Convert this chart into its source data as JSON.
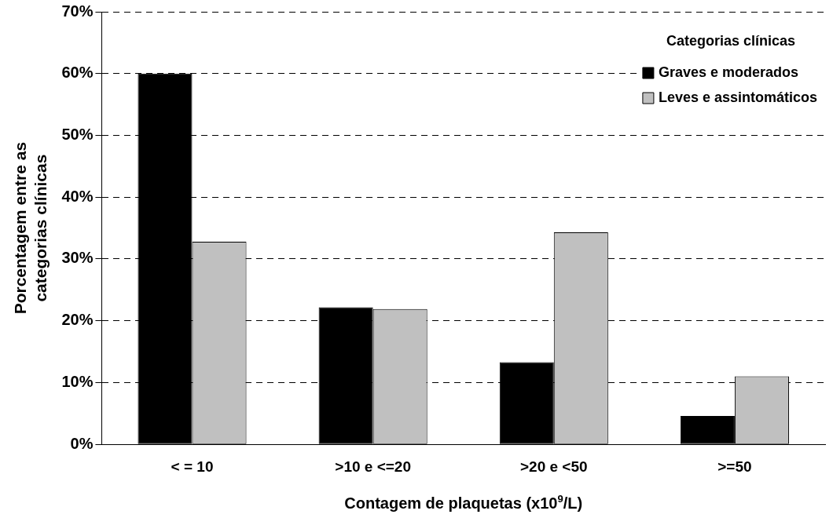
{
  "chart_data": {
    "type": "bar",
    "xlabel": "Contagem de plaquetas (x10$^{9}$/L)",
    "ylabel": "Porcentagem entre as categorias clínicas",
    "legend_title": "Categorias clínicas",
    "legend": "top right",
    "grid": "y",
    "categories": [
      "< = 10",
      ">10 e <=20",
      ">20 e <50",
      ">=50"
    ],
    "series": [
      {
        "name": "Graves e moderados",
        "color": "#000000",
        "values": [
          60,
          22.2,
          13.3,
          4.6
        ]
      },
      {
        "name": "Leves e assintomáticos",
        "color": "#c0c0c0",
        "values": [
          32.8,
          21.9,
          34.3,
          11.0
        ]
      }
    ],
    "ylim": [
      0,
      70
    ],
    "yticks": [
      {
        "value": 0,
        "label": "0%"
      },
      {
        "value": 10,
        "label": "10%"
      },
      {
        "value": 20,
        "label": "20%"
      },
      {
        "value": 30,
        "label": "30%"
      },
      {
        "value": 40,
        "label": "40%"
      },
      {
        "value": 50,
        "label": "50%"
      },
      {
        "value": 60,
        "label": "60%"
      },
      {
        "value": 70,
        "label": "70%"
      }
    ]
  }
}
